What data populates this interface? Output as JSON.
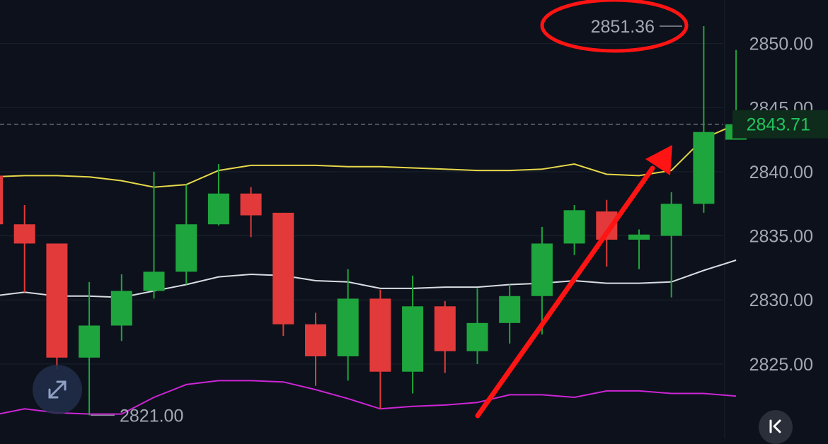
{
  "chart_data": {
    "type": "candlestick",
    "y_axis": {
      "ticks": [
        {
          "value": 2850,
          "label": "2850.00"
        },
        {
          "value": 2845,
          "label": "2845.00"
        },
        {
          "value": 2840,
          "label": "2840.00"
        },
        {
          "value": 2835,
          "label": "2835.00"
        },
        {
          "value": 2830,
          "label": "2830.00"
        },
        {
          "value": 2825,
          "label": "2825.00"
        }
      ],
      "ylim": [
        2819.2,
        2853.4
      ],
      "position": "right",
      "grid": true
    },
    "last_price": {
      "value": 2843.71,
      "label": "2843.71",
      "line": "dashed"
    },
    "high_marker": {
      "value": 2851.36,
      "label": "2851.36",
      "circled": true
    },
    "low_marker": {
      "value": 2821.0,
      "label": "2821.00"
    },
    "candles": [
      {
        "o": 2839.7,
        "h": 2839.8,
        "l": 2828.7,
        "c": 2835.9
      },
      {
        "o": 2835.9,
        "h": 2837.4,
        "l": 2830.6,
        "c": 2834.4
      },
      {
        "o": 2834.4,
        "h": 2834.4,
        "l": 2824.6,
        "c": 2825.5
      },
      {
        "o": 2825.5,
        "h": 2831.4,
        "l": 2821.0,
        "c": 2828.0
      },
      {
        "o": 2828.0,
        "h": 2832.0,
        "l": 2826.8,
        "c": 2830.7
      },
      {
        "o": 2830.7,
        "h": 2840.0,
        "l": 2830.1,
        "c": 2832.2
      },
      {
        "o": 2832.2,
        "h": 2839.0,
        "l": 2831.2,
        "c": 2835.9
      },
      {
        "o": 2835.9,
        "h": 2840.6,
        "l": 2835.8,
        "c": 2838.3
      },
      {
        "o": 2838.3,
        "h": 2838.8,
        "l": 2834.9,
        "c": 2836.6
      },
      {
        "o": 2836.8,
        "h": 2836.8,
        "l": 2827.2,
        "c": 2828.1
      },
      {
        "o": 2828.1,
        "h": 2829.0,
        "l": 2823.3,
        "c": 2825.6
      },
      {
        "o": 2825.6,
        "h": 2832.4,
        "l": 2823.7,
        "c": 2830.1
      },
      {
        "o": 2830.1,
        "h": 2830.8,
        "l": 2821.5,
        "c": 2824.4
      },
      {
        "o": 2824.4,
        "h": 2831.9,
        "l": 2822.7,
        "c": 2829.5
      },
      {
        "o": 2829.5,
        "h": 2829.9,
        "l": 2824.3,
        "c": 2826.0
      },
      {
        "o": 2826.0,
        "h": 2830.9,
        "l": 2825.0,
        "c": 2828.2
      },
      {
        "o": 2828.2,
        "h": 2831.2,
        "l": 2826.6,
        "c": 2830.3
      },
      {
        "o": 2830.3,
        "h": 2835.7,
        "l": 2827.3,
        "c": 2834.4
      },
      {
        "o": 2834.4,
        "h": 2837.4,
        "l": 2833.5,
        "c": 2837.0
      },
      {
        "o": 2836.9,
        "h": 2837.8,
        "l": 2832.6,
        "c": 2834.7
      },
      {
        "o": 2834.7,
        "h": 2835.5,
        "l": 2832.4,
        "c": 2835.1
      },
      {
        "o": 2835.0,
        "h": 2838.4,
        "l": 2830.2,
        "c": 2837.5
      },
      {
        "o": 2837.5,
        "h": 2851.36,
        "l": 2836.8,
        "c": 2843.1
      },
      {
        "o": 2842.5,
        "h": 2849.5,
        "l": 2842.5,
        "c": 2843.71
      }
    ],
    "bands": {
      "upper": [
        2839.6,
        2839.7,
        2839.7,
        2839.6,
        2839.3,
        2838.8,
        2839.0,
        2840.1,
        2840.5,
        2840.5,
        2840.5,
        2840.4,
        2840.4,
        2840.3,
        2840.2,
        2840.1,
        2840.1,
        2840.2,
        2840.6,
        2839.8,
        2839.7,
        2840.1,
        2842.6,
        2843.7
      ],
      "middle": [
        2830.3,
        2830.6,
        2830.3,
        2830.3,
        2830.2,
        2830.7,
        2831.2,
        2831.8,
        2832.0,
        2831.9,
        2831.5,
        2831.4,
        2830.9,
        2830.9,
        2831.0,
        2831.0,
        2831.2,
        2831.3,
        2831.5,
        2831.3,
        2831.3,
        2831.4,
        2832.3,
        2833.1
      ],
      "lower": [
        2821.0,
        2821.5,
        2821.2,
        2821.1,
        2821.1,
        2822.4,
        2823.4,
        2823.7,
        2823.7,
        2823.6,
        2823.0,
        2822.3,
        2821.5,
        2821.7,
        2821.8,
        2822.0,
        2822.6,
        2822.6,
        2822.4,
        2822.9,
        2822.9,
        2822.7,
        2822.7,
        2822.5
      ]
    },
    "colors": {
      "up": "#1fa53d",
      "down": "#e23a3a",
      "upper_band": "#e6d84a",
      "middle_band": "#d9dde3",
      "lower_band": "#cc25d6",
      "grid": "#1a2230",
      "axis_text": "#a3a8b2",
      "price_text": "#22c55e",
      "annotation": "#ff1414",
      "background": "#0d111b"
    },
    "annotations": [
      "red-ellipse-around-high",
      "red-arrow-up"
    ]
  },
  "ui": {
    "expand_icon": "expand-diagonal-icon",
    "collapse_icon": "collapse-left-icon"
  }
}
